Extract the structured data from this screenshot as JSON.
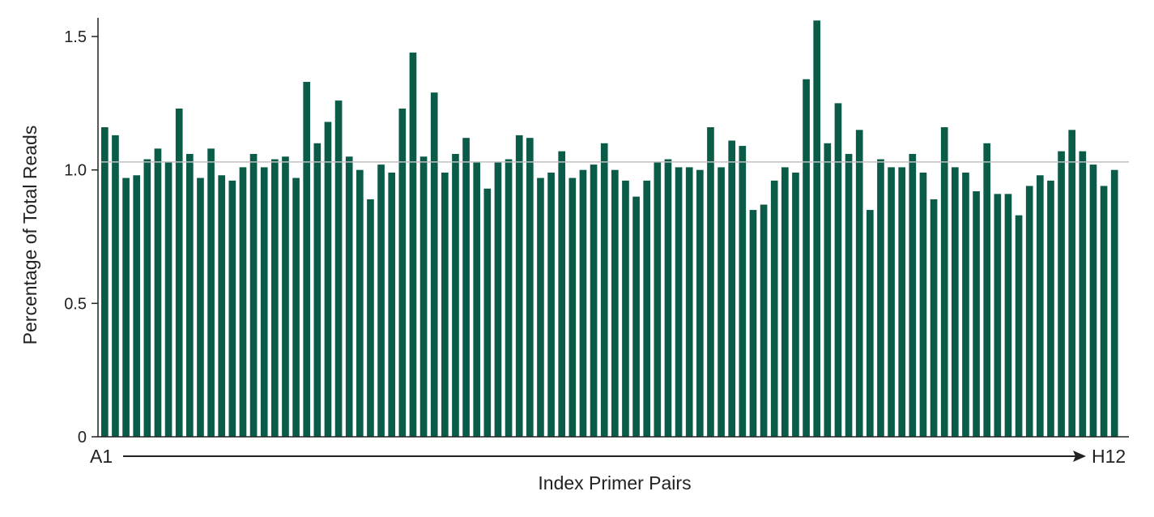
{
  "chart_data": {
    "type": "bar",
    "title": "",
    "xlabel": "Index Primer Pairs",
    "ylabel": "Percentage of Total Reads",
    "x_start_label": "A1",
    "x_end_label": "H12",
    "ylim": [
      0,
      1.57
    ],
    "yticks": [
      0,
      0.5,
      1.0,
      1.5
    ],
    "ytick_labels": [
      "0",
      "0.5",
      "1.0",
      "1.5"
    ],
    "reference_line": 1.03,
    "grid": false,
    "bar_color": "#0a5c48",
    "reference_line_color": "#c0c0c0",
    "values": [
      1.16,
      1.13,
      0.97,
      0.98,
      1.04,
      1.08,
      1.03,
      1.23,
      1.06,
      0.97,
      1.08,
      0.98,
      0.96,
      1.01,
      1.06,
      1.01,
      1.04,
      1.05,
      0.97,
      1.33,
      1.1,
      1.18,
      1.26,
      1.05,
      1.0,
      0.89,
      1.02,
      0.99,
      1.23,
      1.44,
      1.05,
      1.29,
      0.99,
      1.06,
      1.12,
      1.03,
      0.93,
      1.03,
      1.04,
      1.13,
      1.12,
      0.97,
      0.99,
      1.07,
      0.97,
      1.0,
      1.02,
      1.1,
      1.0,
      0.96,
      0.9,
      0.96,
      1.03,
      1.04,
      1.01,
      1.01,
      1.0,
      1.16,
      1.01,
      1.11,
      1.09,
      0.85,
      0.87,
      0.96,
      1.01,
      0.99,
      1.34,
      1.56,
      1.1,
      1.25,
      1.06,
      1.15,
      0.85,
      1.04,
      1.01,
      1.01,
      1.06,
      0.99,
      0.89,
      1.16,
      1.01,
      0.99,
      0.92,
      1.1,
      0.91,
      0.91,
      0.83,
      0.94,
      0.98,
      0.96,
      1.07,
      1.15,
      1.07,
      1.02,
      0.94,
      1.0
    ]
  }
}
